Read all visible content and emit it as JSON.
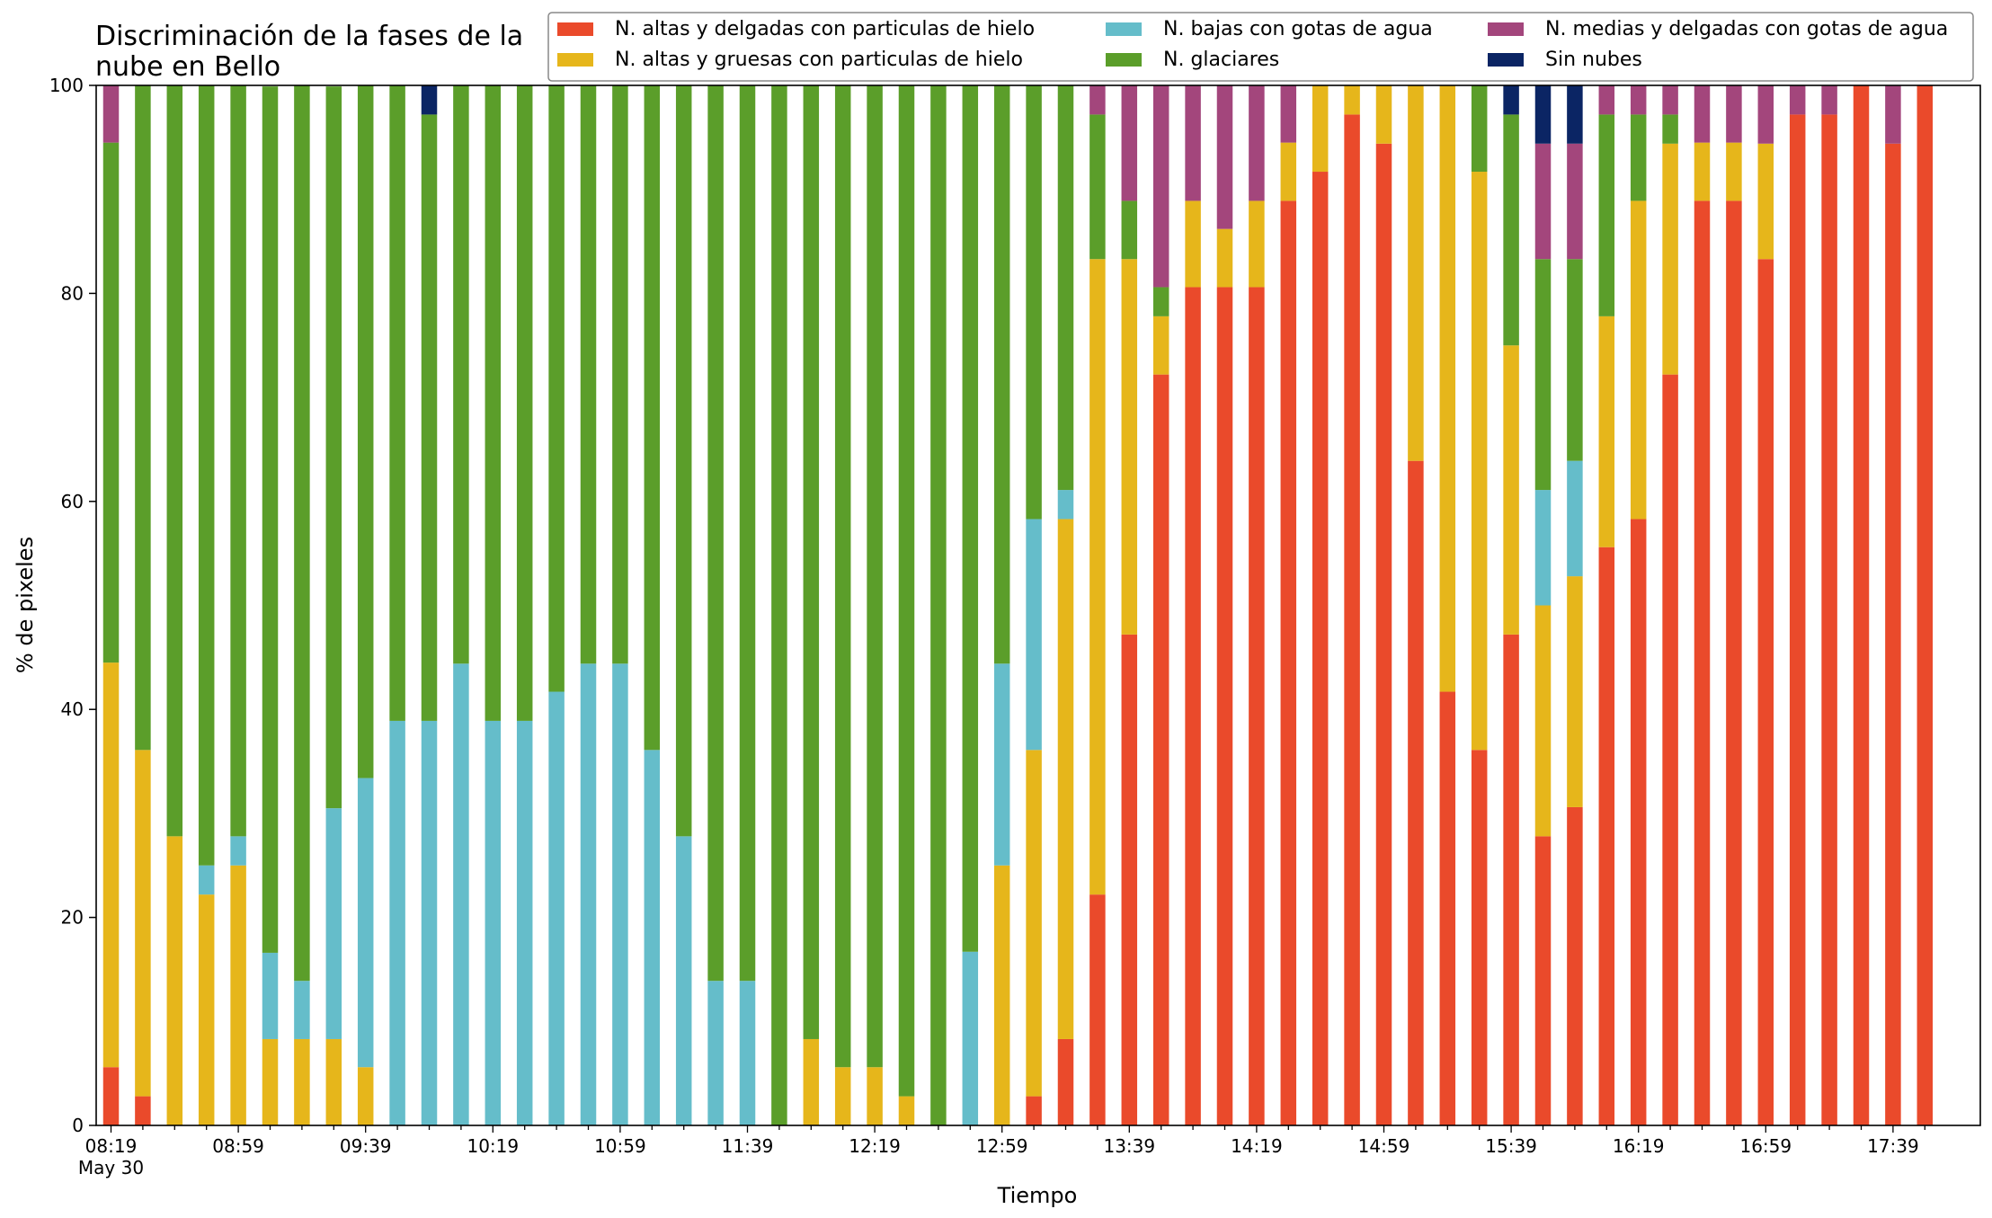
{
  "chart_data": {
    "type": "bar",
    "stacked": true,
    "title_lines": [
      "Discriminación de la fases de la",
      "nube en Bello"
    ],
    "xlabel": "Tiempo",
    "ylabel": "% de pixeles",
    "ylim": [
      0,
      100
    ],
    "yticks": [
      0,
      20,
      40,
      60,
      80,
      100
    ],
    "x_tick_labels": [
      "08:19",
      "08:59",
      "09:39",
      "10:19",
      "10:59",
      "11:39",
      "12:19",
      "12:59",
      "13:39",
      "14:19",
      "14:59",
      "15:39",
      "16:19",
      "16:59",
      "17:39"
    ],
    "x_date_label": "May 30",
    "grid": false,
    "legend_position": "top-right",
    "categories": [
      "08:19",
      "08:29",
      "08:39",
      "08:49",
      "08:59",
      "09:09",
      "09:19",
      "09:29",
      "09:39",
      "09:49",
      "09:59",
      "10:09",
      "10:19",
      "10:29",
      "10:39",
      "10:49",
      "10:59",
      "11:09",
      "11:19",
      "11:29",
      "11:39",
      "11:49",
      "11:59",
      "12:09",
      "12:19",
      "12:29",
      "12:39",
      "12:49",
      "12:59",
      "13:09",
      "13:19",
      "13:29",
      "13:39",
      "13:49",
      "13:59",
      "14:09",
      "14:19",
      "14:29",
      "14:39",
      "14:49",
      "14:59",
      "15:09",
      "15:19",
      "15:29",
      "15:39",
      "15:49",
      "15:59",
      "16:09",
      "16:19",
      "16:29",
      "16:39",
      "16:49",
      "16:59",
      "17:09",
      "17:19",
      "17:29",
      "17:39",
      "17:49"
    ],
    "series": [
      {
        "name": "N. altas y delgadas con particulas de hielo",
        "color": "#EA4A2B",
        "values": [
          5.6,
          2.8,
          0,
          0,
          0,
          0,
          0,
          0,
          0,
          0,
          0,
          0,
          0,
          0,
          0,
          0,
          0,
          0,
          0,
          0,
          0,
          0,
          0,
          0,
          0,
          0,
          0,
          0,
          0,
          2.8,
          8.3,
          22.2,
          47.2,
          72.2,
          80.6,
          80.6,
          80.6,
          88.9,
          91.7,
          97.2,
          94.4,
          63.9,
          41.7,
          36.1,
          47.2,
          27.8,
          30.6,
          55.6,
          58.3,
          72.2,
          88.9,
          88.9,
          83.3,
          97.2,
          97.2,
          100,
          94.4,
          100
        ]
      },
      {
        "name": "N. altas y gruesas con particulas de hielo",
        "color": "#E6B61B",
        "values": [
          38.9,
          33.3,
          27.8,
          22.2,
          25,
          8.3,
          8.3,
          8.3,
          5.6,
          0,
          0,
          0,
          0,
          0,
          0,
          0,
          0,
          0,
          0,
          0,
          0,
          0,
          8.3,
          5.6,
          5.6,
          2.8,
          0,
          0,
          25,
          33.3,
          50,
          61.1,
          36.1,
          5.6,
          8.3,
          5.6,
          8.3,
          5.6,
          8.3,
          2.8,
          5.6,
          36.1,
          58.3,
          55.6,
          27.8,
          22.2,
          22.2,
          22.2,
          30.6,
          22.2,
          5.6,
          5.6,
          11.1,
          0,
          0,
          0,
          0,
          0
        ]
      },
      {
        "name": "N. bajas con gotas de agua",
        "color": "#65BDCA",
        "values": [
          0,
          0,
          0,
          2.8,
          2.8,
          8.3,
          5.6,
          22.2,
          27.8,
          38.9,
          38.9,
          44.4,
          38.9,
          38.9,
          41.7,
          44.4,
          44.4,
          36.1,
          27.8,
          13.9,
          13.9,
          0,
          0,
          0,
          0,
          0,
          0,
          16.7,
          19.4,
          22.2,
          2.8,
          0,
          0,
          0,
          0,
          0,
          0,
          0,
          0,
          0,
          0,
          0,
          0,
          0,
          0,
          11.1,
          11.1,
          0,
          0,
          0,
          0,
          0,
          0,
          0,
          0,
          0,
          0,
          0
        ]
      },
      {
        "name": "N. glaciares",
        "color": "#5B9E2A",
        "values": [
          50,
          63.9,
          72.2,
          75,
          72.2,
          83.3,
          86.1,
          69.4,
          66.7,
          61.1,
          58.3,
          55.6,
          61.1,
          61.1,
          58.3,
          55.6,
          55.6,
          63.9,
          72.2,
          86.1,
          86.1,
          100,
          91.7,
          94.4,
          94.4,
          97.2,
          100,
          83.3,
          55.6,
          41.7,
          38.9,
          13.9,
          5.6,
          2.8,
          0,
          0,
          0,
          0,
          0,
          0,
          0,
          0,
          0,
          8.3,
          22.2,
          22.2,
          19.4,
          19.4,
          8.3,
          2.8,
          0,
          0,
          0,
          0,
          0,
          0,
          0,
          0
        ]
      },
      {
        "name": "N. medias y delgadas con gotas de agua",
        "color": "#A3467C",
        "values": [
          5.6,
          0,
          0,
          0,
          0,
          0,
          0,
          0,
          0,
          0,
          0,
          0,
          0,
          0,
          0,
          0,
          0,
          0,
          0,
          0,
          0,
          0,
          0,
          0,
          0,
          0,
          0,
          0,
          0,
          0,
          0,
          2.8,
          11.1,
          19.4,
          11.1,
          13.9,
          11.1,
          5.6,
          0,
          0,
          0,
          0,
          0,
          0,
          0,
          11.1,
          11.1,
          2.8,
          2.8,
          2.8,
          5.6,
          5.6,
          5.6,
          2.8,
          2.8,
          0,
          5.6,
          0
        ]
      },
      {
        "name": "Sin nubes",
        "color": "#0B2564",
        "values": [
          0,
          0,
          0,
          0,
          0,
          0,
          0,
          0,
          0,
          0,
          2.8,
          0,
          0,
          0,
          0,
          0,
          0,
          0,
          0,
          0,
          0,
          0,
          0,
          0,
          0,
          0,
          0,
          0,
          0,
          0,
          0,
          0,
          0,
          0,
          0,
          0,
          0,
          0,
          0,
          0,
          0,
          0,
          0,
          0,
          2.8,
          5.6,
          5.6,
          0,
          0,
          0,
          0,
          0,
          0,
          0,
          0,
          0,
          0,
          0
        ]
      }
    ]
  }
}
